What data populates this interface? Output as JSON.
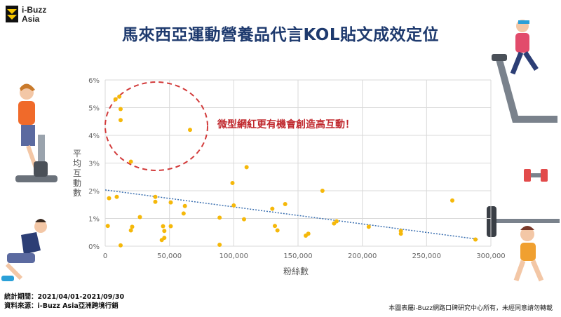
{
  "logo": {
    "line1": "i-Buzz",
    "line2": "Asia"
  },
  "title": "馬來西亞運動營養品代言KOL貼文成效定位",
  "annotation": "微型網紅更有機會創造高互動！",
  "footer": {
    "period": "統計期間：2021/04/01-2021/09/30",
    "source": "資料來源：i-Buzz Asia亞洲跨境行銷",
    "copyright": "本圖表屬i-Buzz網路口碑研究中心所有，未經同意請勿轉載"
  },
  "colors": {
    "title": "#1e3a6e",
    "point": "#f5b80a",
    "trend": "#3a6fb0",
    "annotation": "#c0282d"
  },
  "chart_data": {
    "type": "scatter",
    "xlabel": "粉絲數",
    "ylabel": "平均互動數",
    "xlim": [
      0,
      300000
    ],
    "ylim": [
      0,
      0.06
    ],
    "xticks": [
      0,
      50000,
      100000,
      150000,
      200000,
      250000,
      300000
    ],
    "xtick_labels": [
      "0",
      "50,000",
      "100,000",
      "150,000",
      "200,000",
      "250,000",
      "300,000"
    ],
    "yticks": [
      0,
      0.01,
      0.02,
      0.03,
      0.04,
      0.05,
      0.06
    ],
    "ytick_labels": [
      "0%",
      "1%",
      "2%",
      "3%",
      "4%",
      "5%",
      "6%"
    ],
    "grid": true,
    "trendline": {
      "type": "linear",
      "x": [
        0,
        290000
      ],
      "y": [
        0.0203,
        0.0025
      ]
    },
    "points": [
      {
        "x": 8000,
        "y": 0.053
      },
      {
        "x": 11000,
        "y": 0.054
      },
      {
        "x": 12000,
        "y": 0.0495
      },
      {
        "x": 12000,
        "y": 0.0455
      },
      {
        "x": 66000,
        "y": 0.042
      },
      {
        "x": 20000,
        "y": 0.0305
      },
      {
        "x": 110000,
        "y": 0.0285
      },
      {
        "x": 99000,
        "y": 0.0228
      },
      {
        "x": 169000,
        "y": 0.02
      },
      {
        "x": 270000,
        "y": 0.0165
      },
      {
        "x": 3000,
        "y": 0.0173
      },
      {
        "x": 9000,
        "y": 0.0178
      },
      {
        "x": 39000,
        "y": 0.0178
      },
      {
        "x": 39000,
        "y": 0.016
      },
      {
        "x": 51000,
        "y": 0.0158
      },
      {
        "x": 62000,
        "y": 0.0145
      },
      {
        "x": 100000,
        "y": 0.0147
      },
      {
        "x": 140000,
        "y": 0.0152
      },
      {
        "x": 130000,
        "y": 0.0135
      },
      {
        "x": 61000,
        "y": 0.0118
      },
      {
        "x": 27000,
        "y": 0.0105
      },
      {
        "x": 89000,
        "y": 0.0103
      },
      {
        "x": 108000,
        "y": 0.0097
      },
      {
        "x": 180000,
        "y": 0.009
      },
      {
        "x": 178000,
        "y": 0.0082
      },
      {
        "x": 2000,
        "y": 0.0073
      },
      {
        "x": 21000,
        "y": 0.007
      },
      {
        "x": 45000,
        "y": 0.0072
      },
      {
        "x": 51000,
        "y": 0.0072
      },
      {
        "x": 132000,
        "y": 0.0073
      },
      {
        "x": 205000,
        "y": 0.007
      },
      {
        "x": 20000,
        "y": 0.0057
      },
      {
        "x": 46000,
        "y": 0.0055
      },
      {
        "x": 134000,
        "y": 0.0057
      },
      {
        "x": 158000,
        "y": 0.0045
      },
      {
        "x": 156000,
        "y": 0.0038
      },
      {
        "x": 230000,
        "y": 0.0055
      },
      {
        "x": 230000,
        "y": 0.0045
      },
      {
        "x": 44000,
        "y": 0.0022
      },
      {
        "x": 46000,
        "y": 0.003
      },
      {
        "x": 288000,
        "y": 0.0024
      },
      {
        "x": 12000,
        "y": 0.0003
      },
      {
        "x": 89000,
        "y": 0.0005
      }
    ]
  }
}
